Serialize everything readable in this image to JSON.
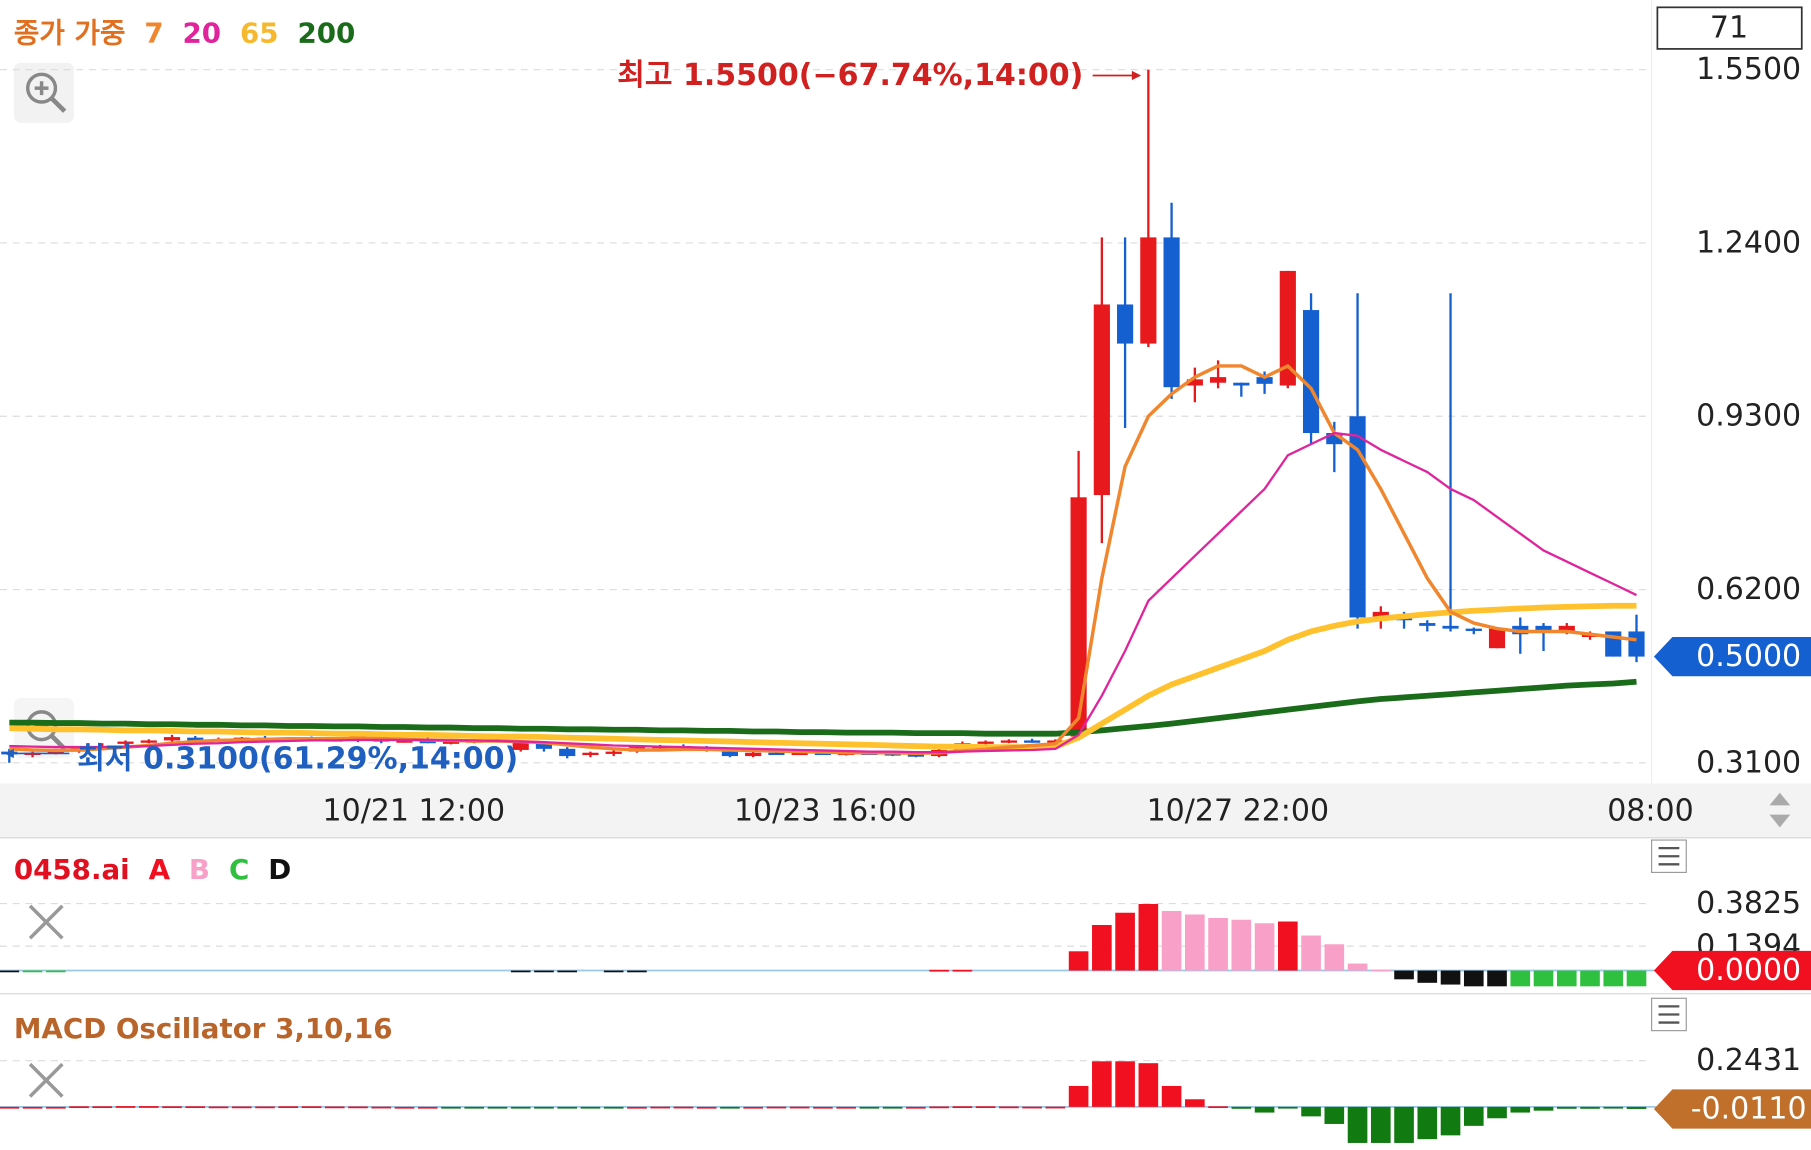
{
  "chart_data": [
    {
      "type": "candlestick",
      "legend_title": "종가 가중",
      "count": 71,
      "grid": true,
      "up_color": "#e8191c",
      "down_color": "#1560d0",
      "open": [
        0.33,
        0.325,
        0.33,
        0.33,
        0.34,
        0.345,
        0.348,
        0.35,
        0.355,
        0.35,
        0.352,
        0.355,
        0.353,
        0.354,
        0.352,
        0.35,
        0.356,
        0.348,
        0.35,
        0.346,
        0.348,
        0.35,
        0.333,
        0.345,
        0.335,
        0.325,
        0.328,
        0.33,
        0.338,
        0.34,
        0.336,
        0.33,
        0.322,
        0.328,
        0.327,
        0.328,
        0.326,
        0.328,
        0.327,
        0.325,
        0.322,
        0.333,
        0.345,
        0.348,
        0.35,
        0.348,
        0.357,
        0.789,
        1.13,
        1.06,
        1.25,
        0.985,
        0.99,
        0.99,
        1.0,
        0.985,
        1.12,
        0.9,
        0.93,
        0.565,
        0.575,
        0.56,
        0.555,
        0.55,
        0.515,
        0.555,
        0.555,
        0.545,
        0.535,
        0.545,
        0.545
      ],
      "high": [
        0.335,
        0.33,
        0.335,
        0.34,
        0.345,
        0.35,
        0.352,
        0.36,
        0.358,
        0.355,
        0.356,
        0.358,
        0.356,
        0.357,
        0.355,
        0.36,
        0.358,
        0.352,
        0.356,
        0.35,
        0.352,
        0.355,
        0.348,
        0.348,
        0.338,
        0.33,
        0.335,
        0.34,
        0.342,
        0.343,
        0.34,
        0.333,
        0.33,
        0.332,
        0.33,
        0.33,
        0.33,
        0.33,
        0.33,
        0.328,
        0.335,
        0.348,
        0.35,
        0.352,
        0.353,
        0.352,
        0.868,
        1.25,
        1.25,
        1.55,
        1.312,
        1.017,
        1.03,
        0.99,
        1.01,
        1.19,
        1.15,
        0.92,
        1.15,
        0.59,
        0.58,
        0.565,
        1.15,
        0.552,
        0.55,
        0.57,
        0.56,
        0.56,
        0.545,
        0.545,
        0.575
      ],
      "low": [
        0.31,
        0.32,
        0.325,
        0.328,
        0.335,
        0.34,
        0.345,
        0.345,
        0.348,
        0.347,
        0.35,
        0.35,
        0.35,
        0.35,
        0.348,
        0.347,
        0.345,
        0.346,
        0.345,
        0.343,
        0.345,
        0.348,
        0.33,
        0.33,
        0.318,
        0.32,
        0.322,
        0.328,
        0.335,
        0.335,
        0.33,
        0.32,
        0.32,
        0.324,
        0.324,
        0.325,
        0.323,
        0.325,
        0.322,
        0.32,
        0.32,
        0.33,
        0.34,
        0.345,
        0.346,
        0.345,
        0.351,
        0.703,
        0.909,
        1.054,
        0.961,
        0.955,
        0.98,
        0.965,
        0.97,
        0.98,
        0.88,
        0.83,
        0.55,
        0.55,
        0.55,
        0.545,
        0.545,
        0.54,
        0.515,
        0.505,
        0.51,
        0.54,
        0.53,
        0.5,
        0.49
      ],
      "close": [
        0.325,
        0.328,
        0.33,
        0.338,
        0.34,
        0.348,
        0.35,
        0.356,
        0.35,
        0.352,
        0.355,
        0.353,
        0.354,
        0.352,
        0.35,
        0.358,
        0.348,
        0.35,
        0.345,
        0.348,
        0.35,
        0.352,
        0.346,
        0.335,
        0.322,
        0.328,
        0.33,
        0.338,
        0.34,
        0.338,
        0.332,
        0.322,
        0.328,
        0.327,
        0.328,
        0.326,
        0.328,
        0.327,
        0.325,
        0.322,
        0.333,
        0.345,
        0.348,
        0.35,
        0.348,
        0.35,
        0.785,
        1.13,
        1.06,
        1.25,
        0.982,
        0.996,
        1.0,
        0.985,
        0.988,
        1.19,
        0.9,
        0.88,
        0.57,
        0.58,
        0.565,
        0.555,
        0.55,
        0.548,
        0.55,
        0.54,
        0.545,
        0.555,
        0.54,
        0.5,
        0.5
      ],
      "series": [
        {
          "name": "7",
          "color": "#f0862e",
          "values": [
            0.335,
            0.333,
            0.332,
            0.333,
            0.335,
            0.338,
            0.341,
            0.345,
            0.348,
            0.35,
            0.351,
            0.352,
            0.353,
            0.353,
            0.353,
            0.354,
            0.353,
            0.352,
            0.351,
            0.35,
            0.349,
            0.349,
            0.348,
            0.346,
            0.342,
            0.338,
            0.335,
            0.333,
            0.333,
            0.334,
            0.334,
            0.333,
            0.332,
            0.331,
            0.33,
            0.329,
            0.328,
            0.328,
            0.328,
            0.327,
            0.328,
            0.331,
            0.334,
            0.338,
            0.341,
            0.344,
            0.39,
            0.64,
            0.84,
            0.93,
            0.97,
            1.0,
            1.02,
            1.02,
            1.0,
            1.02,
            0.98,
            0.9,
            0.87,
            0.8,
            0.72,
            0.64,
            0.58,
            0.56,
            0.55,
            0.545,
            0.545,
            0.545,
            0.54,
            0.535,
            0.53
          ]
        },
        {
          "name": "20",
          "color": "#e0249c",
          "values": [
            0.34,
            0.339,
            0.338,
            0.338,
            0.338,
            0.339,
            0.34,
            0.342,
            0.344,
            0.345,
            0.347,
            0.348,
            0.349,
            0.35,
            0.35,
            0.351,
            0.351,
            0.351,
            0.351,
            0.35,
            0.35,
            0.349,
            0.348,
            0.347,
            0.345,
            0.343,
            0.341,
            0.34,
            0.339,
            0.338,
            0.337,
            0.336,
            0.335,
            0.334,
            0.333,
            0.332,
            0.331,
            0.33,
            0.33,
            0.329,
            0.329,
            0.33,
            0.331,
            0.332,
            0.333,
            0.335,
            0.36,
            0.43,
            0.51,
            0.6,
            0.64,
            0.68,
            0.72,
            0.76,
            0.8,
            0.86,
            0.88,
            0.9,
            0.895,
            0.87,
            0.85,
            0.83,
            0.8,
            0.78,
            0.75,
            0.72,
            0.69,
            0.67,
            0.65,
            0.63,
            0.61
          ]
        },
        {
          "name": "65",
          "color": "#ffc12e",
          "values": [
            0.372,
            0.371,
            0.37,
            0.37,
            0.369,
            0.368,
            0.368,
            0.367,
            0.366,
            0.366,
            0.365,
            0.364,
            0.364,
            0.363,
            0.362,
            0.362,
            0.361,
            0.36,
            0.36,
            0.359,
            0.358,
            0.357,
            0.357,
            0.356,
            0.355,
            0.354,
            0.353,
            0.352,
            0.351,
            0.35,
            0.349,
            0.348,
            0.347,
            0.346,
            0.345,
            0.344,
            0.343,
            0.342,
            0.341,
            0.34,
            0.339,
            0.339,
            0.338,
            0.338,
            0.338,
            0.339,
            0.355,
            0.38,
            0.405,
            0.43,
            0.45,
            0.465,
            0.48,
            0.495,
            0.51,
            0.53,
            0.545,
            0.555,
            0.563,
            0.568,
            0.572,
            0.576,
            0.579,
            0.582,
            0.584,
            0.586,
            0.588,
            0.589,
            0.59,
            0.591,
            0.591
          ]
        },
        {
          "name": "200",
          "color": "#1a6b1a",
          "values": [
            0.382,
            0.382,
            0.381,
            0.381,
            0.38,
            0.38,
            0.379,
            0.379,
            0.378,
            0.378,
            0.377,
            0.377,
            0.376,
            0.376,
            0.375,
            0.375,
            0.374,
            0.374,
            0.373,
            0.373,
            0.372,
            0.372,
            0.371,
            0.371,
            0.37,
            0.37,
            0.369,
            0.369,
            0.368,
            0.368,
            0.367,
            0.367,
            0.366,
            0.366,
            0.365,
            0.365,
            0.364,
            0.364,
            0.364,
            0.363,
            0.363,
            0.363,
            0.362,
            0.362,
            0.362,
            0.362,
            0.365,
            0.368,
            0.372,
            0.376,
            0.38,
            0.385,
            0.39,
            0.395,
            0.4,
            0.405,
            0.41,
            0.415,
            0.42,
            0.424,
            0.427,
            0.43,
            0.433,
            0.436,
            0.439,
            0.442,
            0.445,
            0.448,
            0.45,
            0.452,
            0.455
          ]
        }
      ],
      "xlim": [
        -0.4,
        70.65
      ],
      "xticks": [
        {
          "value": 17.4,
          "label": "10/21 12:00"
        },
        {
          "value": 35.1,
          "label": "10/23 16:00"
        },
        {
          "value": 52.85,
          "label": "10/27 22:00"
        },
        {
          "value": 70.6,
          "label": "08:00"
        }
      ],
      "ylim": [
        0.273,
        1.674
      ],
      "yticks": [
        {
          "value": 1.55,
          "label": "1.5500"
        },
        {
          "value": 1.24,
          "label": "1.2400"
        },
        {
          "value": 0.93,
          "label": "0.9300"
        },
        {
          "value": 0.62,
          "label": "0.6200"
        },
        {
          "value": 0.31,
          "label": "0.3100"
        }
      ],
      "last_price": {
        "value": 0.5,
        "label": "0.5000"
      },
      "annotations": [
        {
          "text": "최고 1.5500(−67.74%,14:00)"
        },
        {
          "text": "최저 0.3100(61.29%,14:00)"
        }
      ]
    },
    {
      "type": "bar",
      "title": "0458.ai",
      "series": [
        {
          "name": "A",
          "color": "#f01020",
          "values": [
            null,
            null,
            null,
            null,
            null,
            null,
            null,
            null,
            null,
            null,
            null,
            null,
            null,
            null,
            null,
            null,
            null,
            null,
            null,
            null,
            null,
            null,
            null,
            null,
            null,
            null,
            null,
            null,
            null,
            null,
            null,
            null,
            null,
            null,
            null,
            null,
            null,
            null,
            null,
            null,
            0.004,
            0.004,
            null,
            null,
            null,
            null,
            0.11,
            0.26,
            0.33,
            0.38,
            null,
            null,
            null,
            null,
            null,
            0.28,
            null,
            null,
            null,
            null,
            null,
            null,
            null,
            null,
            null,
            null,
            null,
            null,
            null,
            null,
            null
          ]
        },
        {
          "name": "B",
          "color": "#f8a0c8",
          "values": [
            null,
            null,
            null,
            null,
            null,
            null,
            null,
            null,
            null,
            null,
            null,
            null,
            null,
            null,
            null,
            null,
            null,
            null,
            null,
            null,
            null,
            null,
            null,
            null,
            null,
            null,
            null,
            null,
            null,
            null,
            null,
            null,
            null,
            null,
            null,
            null,
            null,
            null,
            null,
            null,
            null,
            null,
            null,
            null,
            null,
            null,
            null,
            null,
            null,
            null,
            0.34,
            0.32,
            0.3,
            0.29,
            0.27,
            null,
            0.2,
            0.15,
            0.04,
            0.005,
            null,
            null,
            null,
            null,
            null,
            null,
            null,
            null,
            null,
            null,
            null
          ]
        },
        {
          "name": "C",
          "color": "#30c040",
          "values": [
            null,
            -0.005,
            -0.005,
            null,
            null,
            null,
            null,
            null,
            null,
            null,
            null,
            null,
            null,
            null,
            null,
            null,
            null,
            null,
            null,
            null,
            null,
            null,
            null,
            null,
            null,
            null,
            null,
            null,
            null,
            null,
            null,
            null,
            null,
            null,
            null,
            null,
            null,
            null,
            null,
            null,
            null,
            null,
            null,
            null,
            null,
            null,
            null,
            null,
            null,
            null,
            null,
            null,
            null,
            null,
            null,
            null,
            null,
            null,
            null,
            null,
            null,
            null,
            null,
            null,
            null,
            -0.09,
            -0.09,
            -0.09,
            -0.09,
            -0.09,
            -0.09
          ]
        },
        {
          "name": "D",
          "color": "#111111",
          "values": [
            -0.006,
            null,
            null,
            null,
            null,
            null,
            null,
            null,
            null,
            null,
            null,
            null,
            null,
            null,
            null,
            null,
            null,
            null,
            null,
            null,
            null,
            null,
            -0.004,
            -0.004,
            -0.004,
            null,
            -0.004,
            -0.004,
            null,
            null,
            null,
            null,
            null,
            null,
            null,
            null,
            null,
            null,
            null,
            null,
            null,
            null,
            null,
            null,
            null,
            null,
            null,
            null,
            null,
            null,
            null,
            null,
            null,
            null,
            null,
            null,
            null,
            null,
            null,
            null,
            -0.05,
            -0.07,
            -0.08,
            -0.09,
            -0.09,
            null,
            null,
            null,
            null,
            null,
            null
          ]
        }
      ],
      "ylim": [
        -0.132,
        0.758
      ],
      "yticks": [
        0.3825,
        0.1394
      ],
      "last_value": {
        "value": 0,
        "label": "0.0000"
      }
    },
    {
      "type": "bar",
      "title": "MACD Oscillator 3,10,16",
      "positive_color": "#f01020",
      "negative_color": "#117a11",
      "values": [
        0,
        0,
        0,
        0.003,
        0.003,
        0.004,
        0.004,
        0.003,
        0.003,
        0.002,
        0.002,
        0.002,
        0.003,
        0.003,
        0.002,
        0.002,
        0.001,
        0,
        0,
        -0.001,
        -0.001,
        -0.002,
        -0.002,
        -0.003,
        -0.003,
        -0.002,
        -0.001,
        0,
        0.001,
        0.001,
        0,
        -0.001,
        0,
        0.001,
        0.001,
        0,
        0,
        -0.001,
        -0.001,
        0,
        0.002,
        0.003,
        0.003,
        0.002,
        0.001,
        0.001,
        0.11,
        0.24,
        0.24,
        0.23,
        0.11,
        0.04,
        0.003,
        -0.01,
        -0.03,
        -0.003,
        -0.05,
        -0.09,
        -0.19,
        -0.19,
        -0.19,
        -0.17,
        -0.15,
        -0.1,
        -0.06,
        -0.03,
        -0.02,
        -0.01,
        -0.01,
        -0.008,
        -0.011
      ],
      "ylim": [
        -0.225,
        0.596
      ],
      "yticks": [
        0.2431
      ],
      "last_value": {
        "value": -0.011,
        "label": "-0.0110"
      }
    }
  ]
}
